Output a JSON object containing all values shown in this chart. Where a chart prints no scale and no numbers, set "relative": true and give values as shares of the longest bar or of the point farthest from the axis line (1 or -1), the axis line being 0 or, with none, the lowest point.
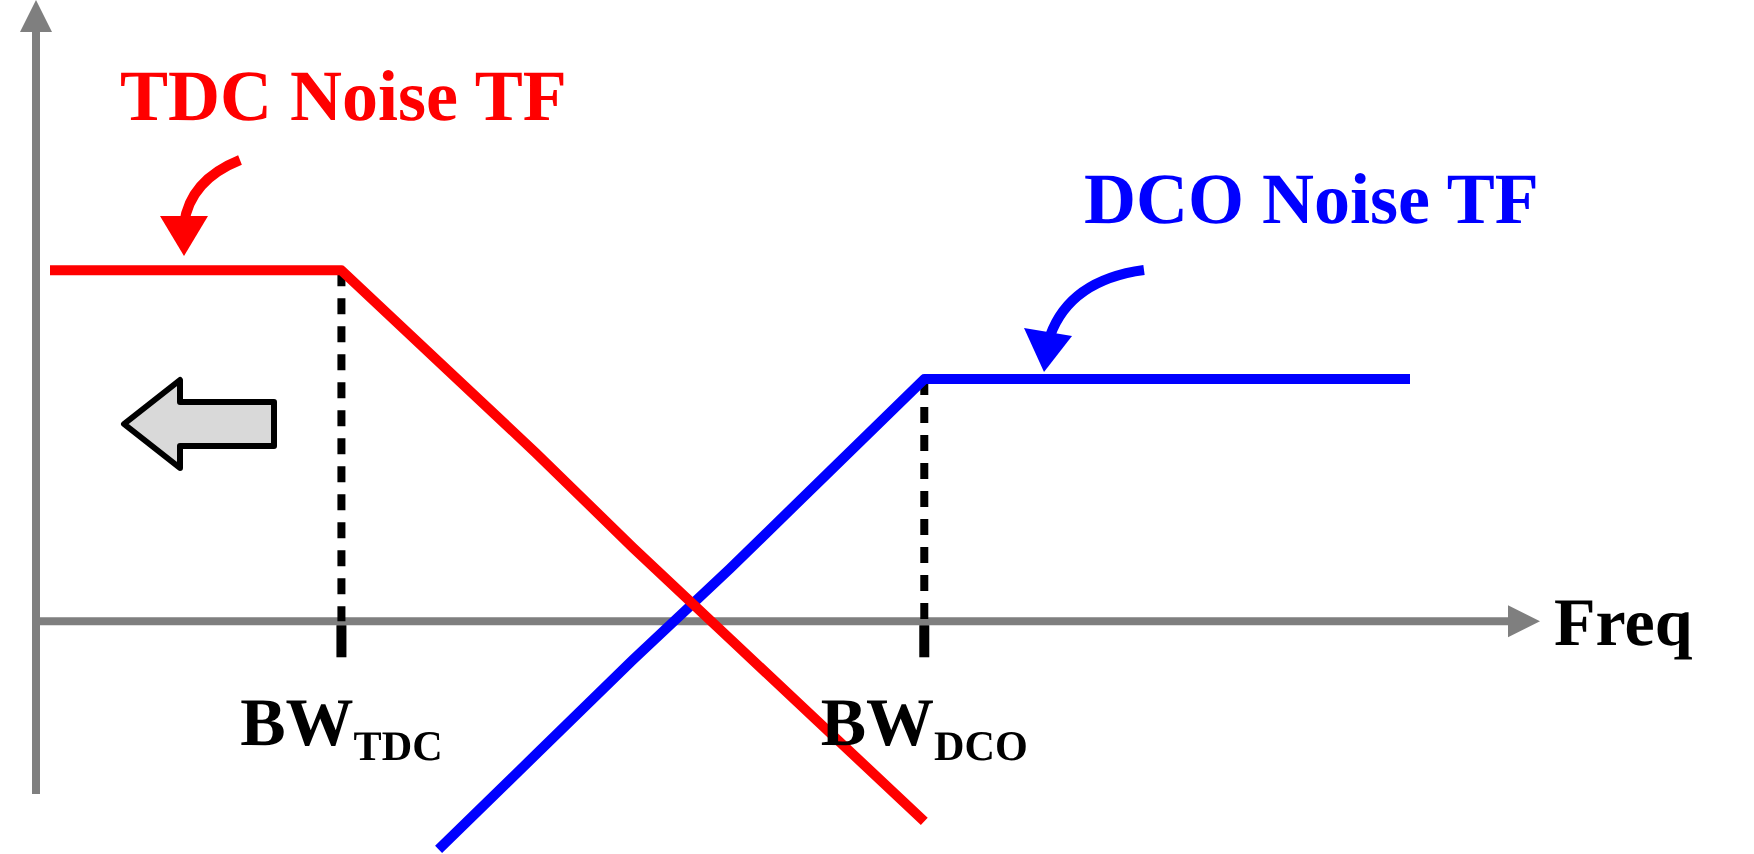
{
  "chart_data": {
    "type": "line",
    "relative": true,
    "xlabel": "Freq",
    "categories": [
      null,
      null,
      null,
      "BW$_{TDC}$",
      null,
      null,
      null,
      null,
      null,
      "BW$_{DCO}$",
      null,
      null,
      null,
      null,
      null
    ],
    "series": [
      {
        "name": "TDC Noise TF",
        "color": "#ff0000",
        "values": [
          1,
          1,
          1,
          1,
          0.74,
          0.48,
          0.21,
          -0.05,
          -0.31,
          -0.57,
          null,
          null,
          null,
          null,
          null
        ]
      },
      {
        "name": "DCO Noise TF",
        "color": "#0000ff",
        "values": [
          null,
          null,
          null,
          null,
          -0.65,
          -0.38,
          -0.11,
          0.15,
          0.42,
          0.69,
          0.69,
          0.69,
          0.69,
          0.69,
          0.69
        ]
      }
    ],
    "ref_lines": [
      {
        "axis": "x",
        "value": "BW$_{TDC}$",
        "line_style": "dashed",
        "color": "#000000"
      },
      {
        "axis": "x",
        "value": "BW$_{DCO}$",
        "line_style": "dashed",
        "color": "#000000"
      }
    ],
    "grid": false,
    "legend": false,
    "marker": "none",
    "line_style": "solid"
  }
}
